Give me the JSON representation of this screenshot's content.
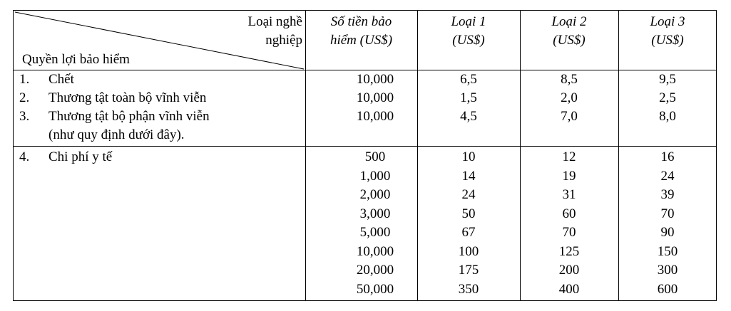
{
  "header": {
    "occupation_label_line1": "Loại nghề",
    "occupation_label_line2": "nghiệp",
    "benefit_label": "Quyền lợi bảo hiểm",
    "sum_line1": "Số tiền bảo",
    "sum_line2": "hiểm (US$)",
    "class1_line1": "Loại 1",
    "class1_line2": "(US$)",
    "class2_line1": "Loại 2",
    "class2_line2": "(US$)",
    "class3_line1": "Loại 3",
    "class3_line2": "(US$)"
  },
  "section1": {
    "rows": [
      {
        "num": "1.",
        "label": "Chết",
        "sum": "10,000",
        "c1": "6,5",
        "c2": "8,5",
        "c3": "9,5"
      },
      {
        "num": "2.",
        "label": "Thương tật toàn bộ vĩnh viễn",
        "sum": "10,000",
        "c1": "1,5",
        "c2": "2,0",
        "c3": "2,5"
      },
      {
        "num": "3.",
        "label": "Thương tật bộ phận vĩnh viễn",
        "sum": "10,000",
        "c1": "4,5",
        "c2": "7,0",
        "c3": "8,0"
      }
    ],
    "note": "(như quy định dưới đây)."
  },
  "section2": {
    "num": "4.",
    "label": "Chi phí y tế",
    "rows": [
      {
        "sum": "500",
        "c1": "10",
        "c2": "12",
        "c3": "16"
      },
      {
        "sum": "1,000",
        "c1": "14",
        "c2": "19",
        "c3": "24"
      },
      {
        "sum": "2,000",
        "c1": "24",
        "c2": "31",
        "c3": "39"
      },
      {
        "sum": "3,000",
        "c1": "50",
        "c2": "60",
        "c3": "70"
      },
      {
        "sum": "5,000",
        "c1": "67",
        "c2": "70",
        "c3": "90"
      },
      {
        "sum": "10,000",
        "c1": "100",
        "c2": "125",
        "c3": "150"
      },
      {
        "sum": "20,000",
        "c1": "175",
        "c2": "200",
        "c3": "300"
      },
      {
        "sum": "50,000",
        "c1": "350",
        "c2": "400",
        "c3": "600"
      }
    ]
  }
}
